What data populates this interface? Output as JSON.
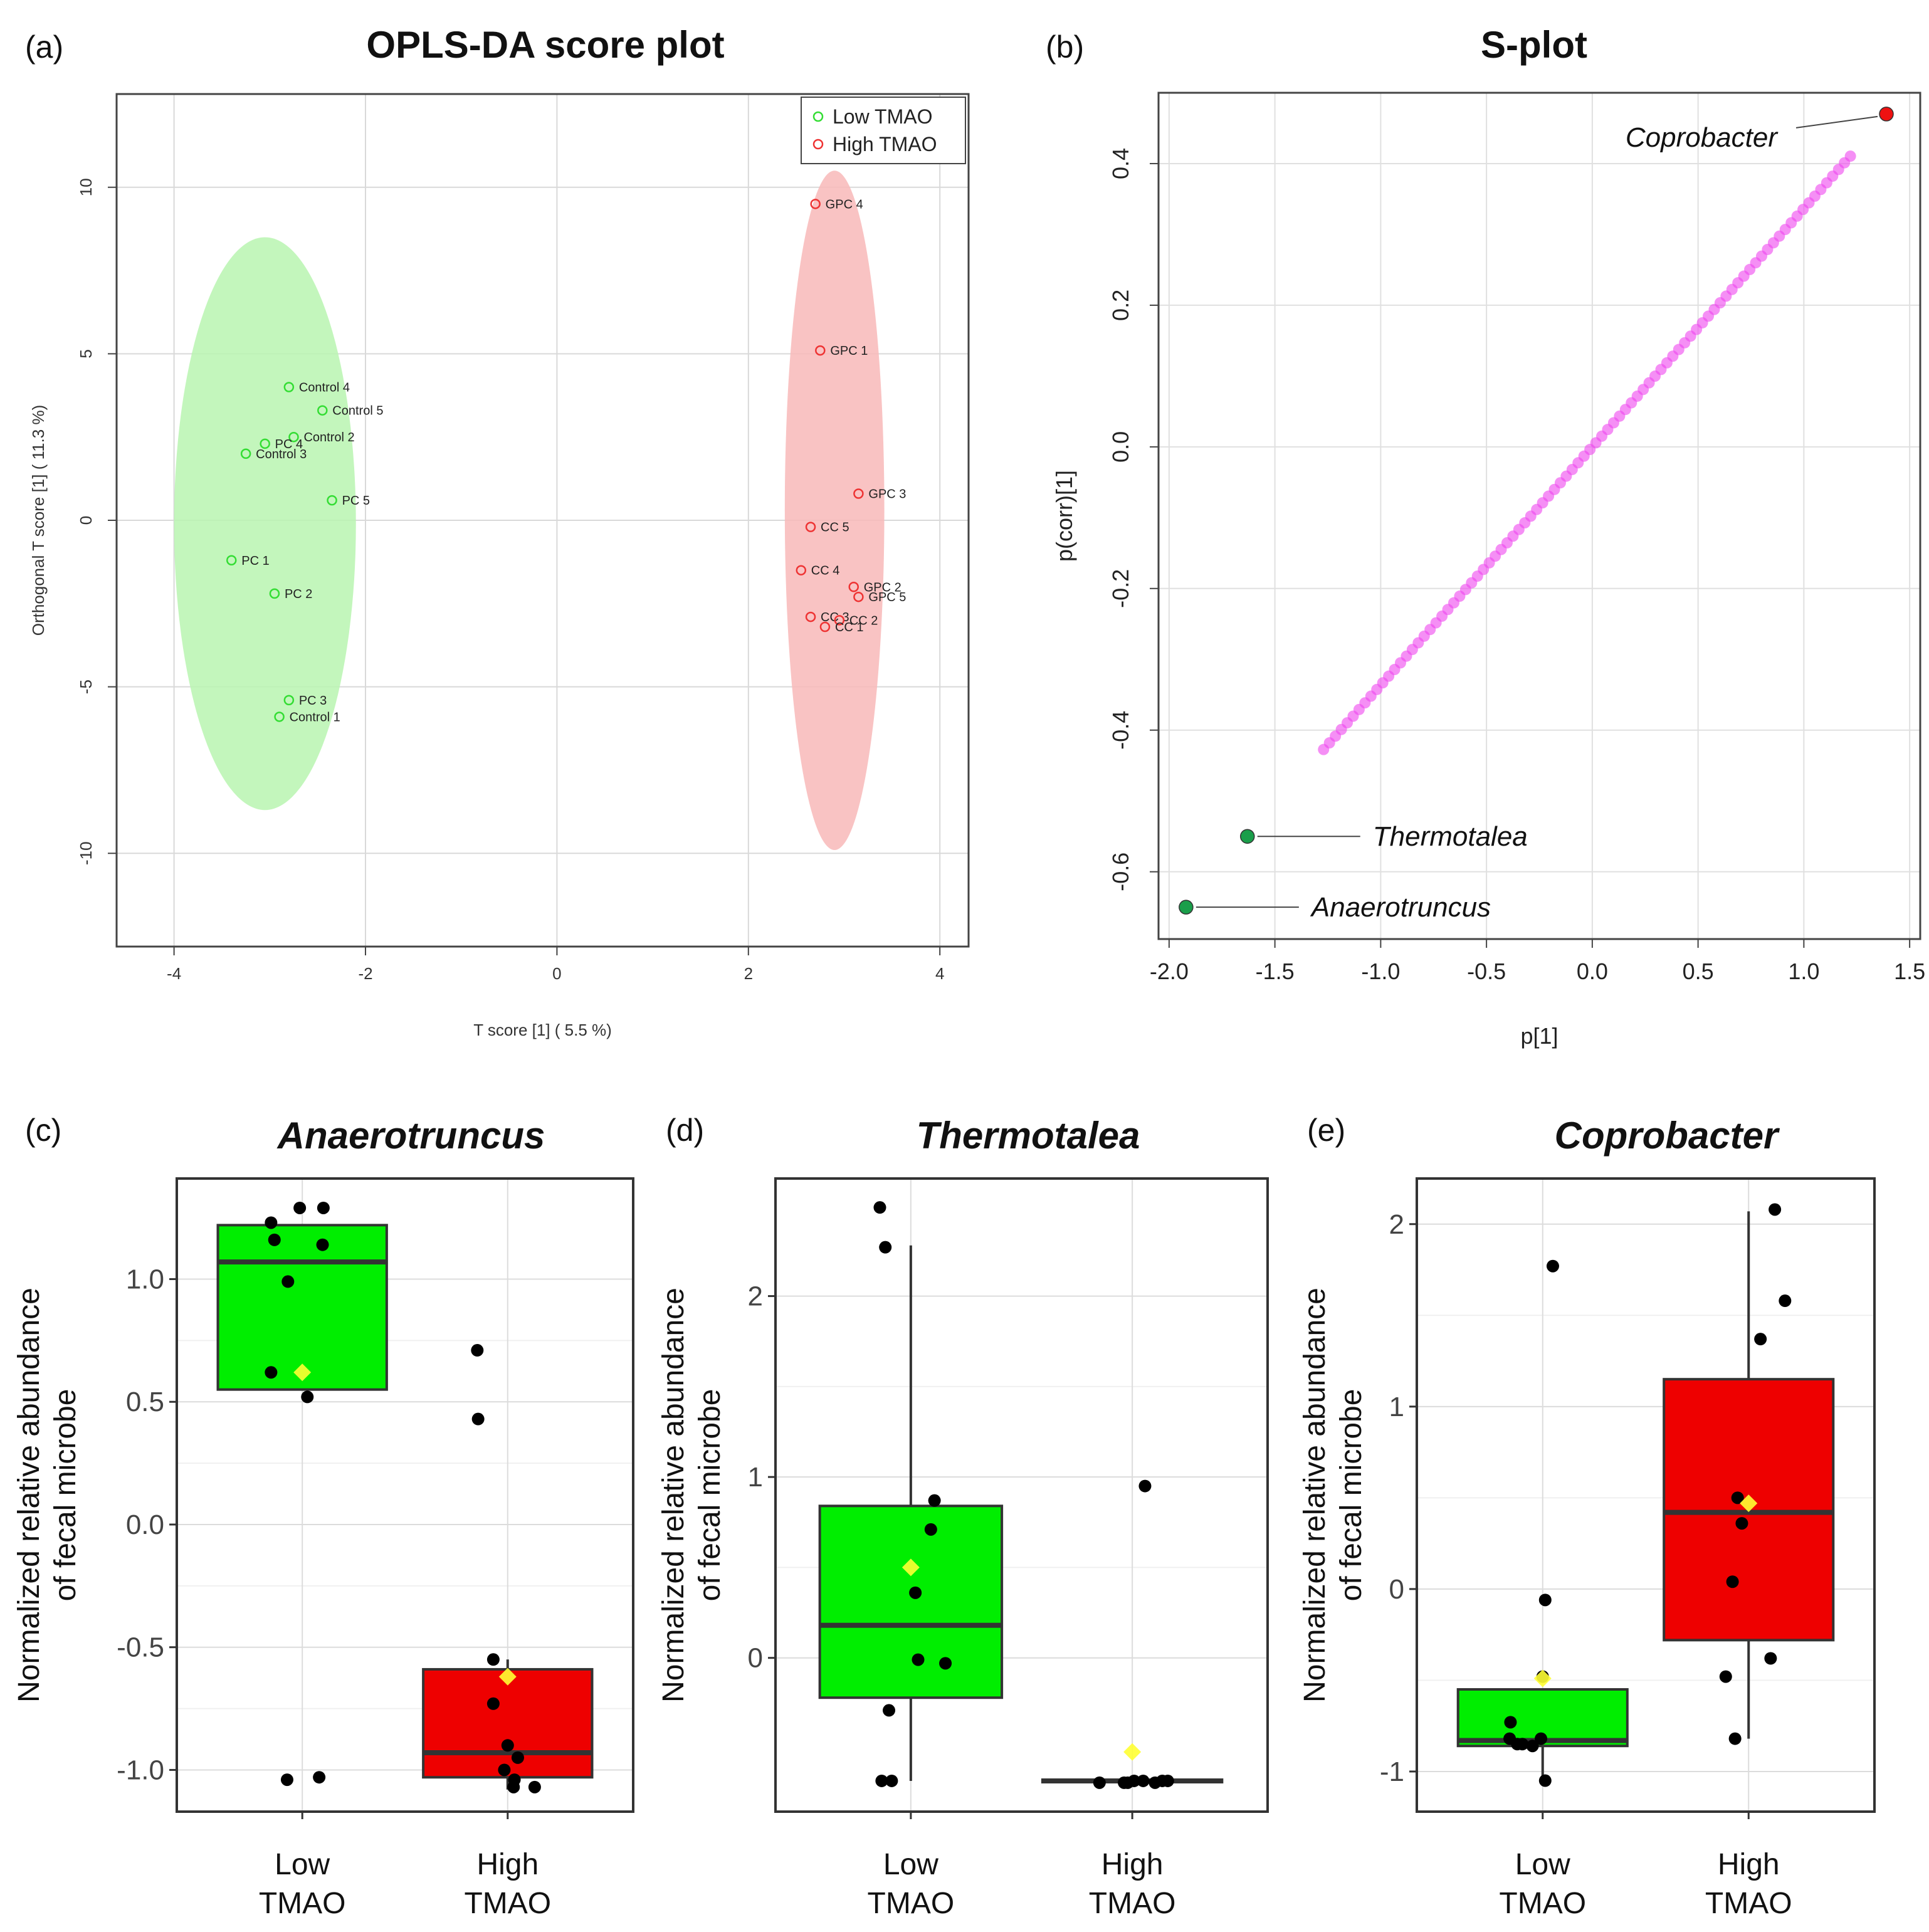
{
  "panels": {
    "a": {
      "letter": "(a)",
      "title": "OPLS-DA score plot"
    },
    "b": {
      "letter": "(b)",
      "title": "S-plot"
    },
    "c": {
      "letter": "(c)",
      "title": "Anaerotruncus"
    },
    "d": {
      "letter": "(d)",
      "title": "Thermotalea"
    },
    "e": {
      "letter": "(e)",
      "title": "Coprobacter"
    }
  },
  "colors": {
    "green_fill": "#00ee00",
    "red_fill": "#ee0000",
    "green_ellipse": "#b8f5b0",
    "red_ellipse": "#f8b8b8",
    "point_green": "#33dd33",
    "point_red": "#ee3333",
    "splot_point": "#ee44ee",
    "highlight_green": "#1a9e4a",
    "highlight_red": "#ee1111",
    "mean_marker": "#ffff33"
  },
  "chart_data": [
    {
      "id": "a",
      "type": "scatter",
      "title": "OPLS-DA score plot",
      "xlabel": "T score [1] ( 5.5 %)",
      "ylabel": "Orthogonal T score [1] ( 11.3 %)",
      "xlim": [
        -4.6,
        4.3
      ],
      "ylim": [
        -12.8,
        12.8
      ],
      "xticks": [
        -4,
        -2,
        0,
        2,
        4
      ],
      "yticks": [
        -10,
        -5,
        0,
        5,
        10
      ],
      "grid": true,
      "legend_position": "top-right",
      "ellipses": [
        {
          "group": "Low TMAO",
          "cx": -3.05,
          "cy": -0.1,
          "rx": 0.95,
          "ry": 8.6
        },
        {
          "group": "High TMAO",
          "cx": 2.9,
          "cy": 0.3,
          "rx": 0.52,
          "ry": 10.2
        }
      ],
      "series": [
        {
          "name": "Low TMAO",
          "points": [
            {
              "label": "Control 4",
              "x": -2.8,
              "y": 4.0
            },
            {
              "label": "Control 5",
              "x": -2.45,
              "y": 3.3
            },
            {
              "label": "Control 2",
              "x": -2.75,
              "y": 2.5
            },
            {
              "label": "PC 4",
              "x": -3.05,
              "y": 2.3
            },
            {
              "label": "Control 3",
              "x": -3.25,
              "y": 2.0
            },
            {
              "label": "PC 5",
              "x": -2.35,
              "y": 0.6
            },
            {
              "label": "PC 1",
              "x": -3.4,
              "y": -1.2
            },
            {
              "label": "PC 2",
              "x": -2.95,
              "y": -2.2
            },
            {
              "label": "PC 3",
              "x": -2.8,
              "y": -5.4
            },
            {
              "label": "Control 1",
              "x": -2.9,
              "y": -5.9
            }
          ]
        },
        {
          "name": "High TMAO",
          "points": [
            {
              "label": "GPC 4",
              "x": 2.7,
              "y": 9.5
            },
            {
              "label": "GPC 1",
              "x": 2.75,
              "y": 5.1
            },
            {
              "label": "GPC 3",
              "x": 3.15,
              "y": 0.8
            },
            {
              "label": "CC 5",
              "x": 2.65,
              "y": -0.2
            },
            {
              "label": "CC 4",
              "x": 2.55,
              "y": -1.5
            },
            {
              "label": "GPC 2",
              "x": 3.1,
              "y": -2.0
            },
            {
              "label": "GPC 5",
              "x": 3.15,
              "y": -2.3
            },
            {
              "label": "CC 3",
              "x": 2.65,
              "y": -2.9
            },
            {
              "label": "CC 2",
              "x": 2.95,
              "y": -3.0
            },
            {
              "label": "CC 1",
              "x": 2.8,
              "y": -3.2
            }
          ]
        }
      ]
    },
    {
      "id": "b",
      "type": "scatter",
      "title": "S-plot",
      "xlabel": "p[1]",
      "ylabel": "p(corr)[1]",
      "xlim": [
        -2.05,
        1.55
      ],
      "ylim": [
        -0.695,
        0.5
      ],
      "xticks": [
        -2.0,
        -1.5,
        -1.0,
        -0.5,
        0.0,
        0.5,
        1.0,
        1.5
      ],
      "xtick_labels": [
        "-2.0",
        "-1.5",
        "-1.0",
        "-0.5",
        "0.0",
        "0.5",
        "1.0",
        "1.5"
      ],
      "yticks": [
        -0.6,
        -0.4,
        -0.2,
        0.0,
        0.2,
        0.4
      ],
      "ytick_labels": [
        "-0.6",
        "-0.4",
        "-0.2",
        "0.0",
        "0.2",
        "0.4"
      ],
      "grid": true,
      "trend": {
        "slope": 0.3365,
        "x_from": -1.27,
        "x_to": 1.22,
        "n_points": 90
      },
      "highlights": [
        {
          "label": "Coprobacter",
          "x": 1.39,
          "y": 0.47,
          "group": "red"
        },
        {
          "label": "Thermotalea",
          "x": -1.63,
          "y": -0.55,
          "group": "green"
        },
        {
          "label": "Anaerotruncus",
          "x": -1.92,
          "y": -0.65,
          "group": "green"
        }
      ]
    },
    {
      "id": "c",
      "type": "box",
      "title": "Anaerotruncus",
      "ylabel": [
        "Normalized relative abundance",
        "of fecal microbe"
      ],
      "categories": [
        "Low TMAO",
        "High TMAO"
      ],
      "category_lines": [
        [
          "Low",
          "TMAO"
        ],
        [
          "High",
          "TMAO"
        ]
      ],
      "ylim": [
        -1.17,
        1.41
      ],
      "yticks": [
        -1.0,
        -0.5,
        0.0,
        0.5,
        1.0
      ],
      "ytick_labels": [
        "-1.0",
        "-0.5",
        "0.0",
        "0.5",
        "1.0"
      ],
      "boxes": [
        {
          "group": "Low TMAO",
          "q1": 0.55,
          "median": 1.07,
          "q3": 1.22,
          "whisker_low": 0.55,
          "whisker_high": 1.22,
          "mean": 0.62,
          "color": "green"
        },
        {
          "group": "High TMAO",
          "q1": -1.03,
          "median": -0.93,
          "q3": -0.59,
          "whisker_low": -1.08,
          "whisker_high": -0.55,
          "mean": -0.62,
          "color": "red"
        }
      ],
      "points": [
        {
          "group": 0,
          "jitter": -0.37,
          "y": 1.23
        },
        {
          "group": 0,
          "jitter": -0.33,
          "y": 1.16
        },
        {
          "group": 0,
          "jitter": -0.17,
          "y": 0.99
        },
        {
          "group": 0,
          "jitter": -0.03,
          "y": 1.29
        },
        {
          "group": 0,
          "jitter": 0.25,
          "y": 1.29
        },
        {
          "group": 0,
          "jitter": 0.24,
          "y": 1.14
        },
        {
          "group": 0,
          "jitter": -0.37,
          "y": 0.62
        },
        {
          "group": 0,
          "jitter": 0.06,
          "y": 0.52
        },
        {
          "group": 0,
          "jitter": -0.18,
          "y": -1.04
        },
        {
          "group": 0,
          "jitter": 0.2,
          "y": -1.03
        },
        {
          "group": 1,
          "jitter": -0.36,
          "y": 0.71
        },
        {
          "group": 1,
          "jitter": -0.35,
          "y": 0.43
        },
        {
          "group": 1,
          "jitter": -0.17,
          "y": -0.55
        },
        {
          "group": 1,
          "jitter": -0.17,
          "y": -0.73
        },
        {
          "group": 1,
          "jitter": 0.0,
          "y": -0.9
        },
        {
          "group": 1,
          "jitter": -0.04,
          "y": -1.0
        },
        {
          "group": 1,
          "jitter": 0.08,
          "y": -1.04
        },
        {
          "group": 1,
          "jitter": 0.12,
          "y": -0.95
        },
        {
          "group": 1,
          "jitter": 0.07,
          "y": -1.07
        },
        {
          "group": 1,
          "jitter": 0.32,
          "y": -1.07
        }
      ]
    },
    {
      "id": "d",
      "type": "box",
      "title": "Thermotalea",
      "ylabel": [
        "Normalized relative abundance",
        "of fecal microbe"
      ],
      "categories": [
        "Low TMAO",
        "High TMAO"
      ],
      "category_lines": [
        [
          "Low",
          "TMAO"
        ],
        [
          "High",
          "TMAO"
        ]
      ],
      "ylim": [
        -0.85,
        2.65
      ],
      "yticks": [
        0,
        1,
        2
      ],
      "ytick_labels": [
        "0",
        "1",
        "2"
      ],
      "boxes": [
        {
          "group": "Low TMAO",
          "q1": -0.22,
          "median": 0.18,
          "q3": 0.84,
          "whisker_low": -0.68,
          "whisker_high": 2.28,
          "mean": 0.5,
          "color": "green"
        },
        {
          "group": "High TMAO",
          "q1": -0.68,
          "median": -0.68,
          "q3": -0.68,
          "whisker_low": -0.68,
          "whisker_high": -0.68,
          "mean": -0.52,
          "color": "red"
        }
      ],
      "points": [
        {
          "group": 0,
          "jitter": -0.34,
          "y": 2.49
        },
        {
          "group": 0,
          "jitter": -0.28,
          "y": 2.27
        },
        {
          "group": 0,
          "jitter": 0.26,
          "y": 0.87
        },
        {
          "group": 0,
          "jitter": 0.22,
          "y": 0.71
        },
        {
          "group": 0,
          "jitter": 0.05,
          "y": 0.36
        },
        {
          "group": 0,
          "jitter": 0.08,
          "y": -0.01
        },
        {
          "group": 0,
          "jitter": 0.38,
          "y": -0.03
        },
        {
          "group": 0,
          "jitter": -0.24,
          "y": -0.29
        },
        {
          "group": 0,
          "jitter": -0.32,
          "y": -0.68
        },
        {
          "group": 0,
          "jitter": -0.21,
          "y": -0.68
        },
        {
          "group": 1,
          "jitter": 0.14,
          "y": 0.95
        },
        {
          "group": 1,
          "jitter": -0.36,
          "y": -0.69
        },
        {
          "group": 1,
          "jitter": -0.09,
          "y": -0.69
        },
        {
          "group": 1,
          "jitter": -0.05,
          "y": -0.69
        },
        {
          "group": 1,
          "jitter": 0.02,
          "y": -0.68
        },
        {
          "group": 1,
          "jitter": 0.12,
          "y": -0.68
        },
        {
          "group": 1,
          "jitter": 0.25,
          "y": -0.69
        },
        {
          "group": 1,
          "jitter": 0.33,
          "y": -0.68
        },
        {
          "group": 1,
          "jitter": 0.39,
          "y": -0.68
        }
      ]
    },
    {
      "id": "e",
      "type": "box",
      "title": "Coprobacter",
      "ylabel": [
        "Normalized relative abundance",
        "of fecal microbe"
      ],
      "categories": [
        "Low TMAO",
        "High TMAO"
      ],
      "category_lines": [
        [
          "Low",
          "TMAO"
        ],
        [
          "High",
          "TMAO"
        ]
      ],
      "ylim": [
        -1.22,
        2.25
      ],
      "yticks": [
        -1,
        0,
        1,
        2
      ],
      "ytick_labels": [
        "-1",
        "0",
        "1",
        "2"
      ],
      "boxes": [
        {
          "group": "Low TMAO",
          "q1": -0.86,
          "median": -0.83,
          "q3": -0.55,
          "whisker_low": -1.05,
          "whisker_high": -0.55,
          "mean": -0.49,
          "color": "green"
        },
        {
          "group": "High TMAO",
          "q1": -0.28,
          "median": 0.42,
          "q3": 1.15,
          "whisker_low": -0.82,
          "whisker_high": 2.07,
          "mean": 0.47,
          "color": "red"
        }
      ],
      "points": [
        {
          "group": 0,
          "jitter": 0.12,
          "y": 1.77
        },
        {
          "group": 0,
          "jitter": 0.03,
          "y": -0.06
        },
        {
          "group": 0,
          "jitter": 0.0,
          "y": -0.48
        },
        {
          "group": 0,
          "jitter": -0.38,
          "y": -0.73
        },
        {
          "group": 0,
          "jitter": -0.39,
          "y": -0.82
        },
        {
          "group": 0,
          "jitter": -0.3,
          "y": -0.85
        },
        {
          "group": 0,
          "jitter": -0.24,
          "y": -0.85
        },
        {
          "group": 0,
          "jitter": -0.12,
          "y": -0.86
        },
        {
          "group": 0,
          "jitter": -0.02,
          "y": -0.82
        },
        {
          "group": 0,
          "jitter": 0.03,
          "y": -1.05
        },
        {
          "group": 1,
          "jitter": 0.31,
          "y": 2.08
        },
        {
          "group": 1,
          "jitter": 0.43,
          "y": 1.58
        },
        {
          "group": 1,
          "jitter": 0.14,
          "y": 1.37
        },
        {
          "group": 1,
          "jitter": -0.13,
          "y": 0.5
        },
        {
          "group": 1,
          "jitter": -0.08,
          "y": 0.36
        },
        {
          "group": 1,
          "jitter": -0.19,
          "y": 0.04
        },
        {
          "group": 1,
          "jitter": -0.27,
          "y": -0.48
        },
        {
          "group": 1,
          "jitter": -0.16,
          "y": -0.82
        },
        {
          "group": 1,
          "jitter": 0.26,
          "y": -0.38
        }
      ]
    }
  ]
}
